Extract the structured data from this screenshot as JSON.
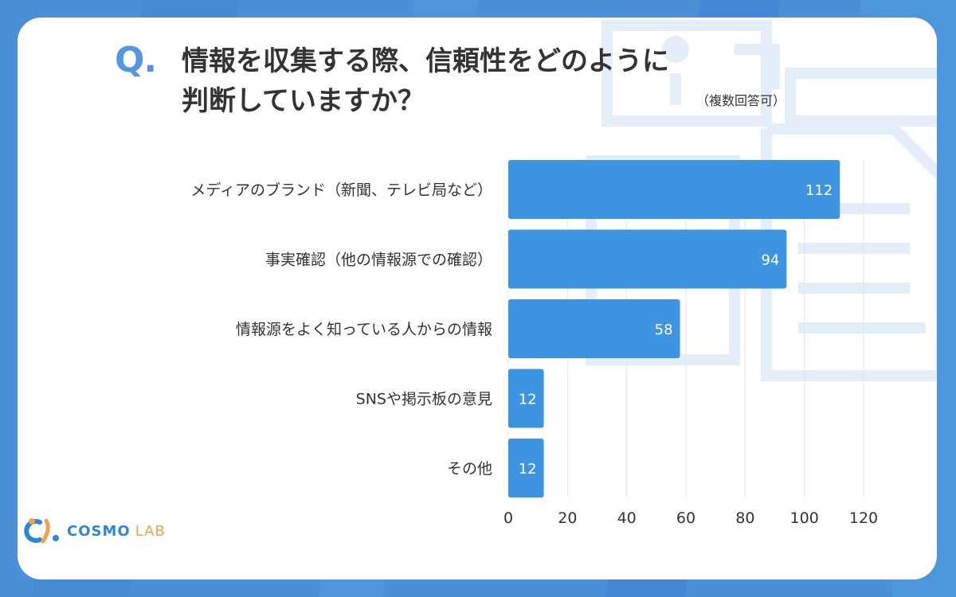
{
  "question": {
    "mark": "Q",
    "mark_dot": ".",
    "line1": "情報を収集する際、信頼性をどのように",
    "line2": "判断していますか？",
    "note": "（複数回答可）"
  },
  "logo": {
    "cosmo": "COSMO",
    "lab": "LAB"
  },
  "colors": {
    "bar": "#3d94e0",
    "accent": "#5596e0",
    "background": "#4a90d9",
    "grid": "#e2e6ec"
  },
  "chart_data": {
    "type": "bar",
    "orientation": "horizontal",
    "categories": [
      "メディアのブランド（新聞、テレビ局など）",
      "事実確認（他の情報源での確認）",
      "情報源をよく知っている人からの情報",
      "SNSや掲示板の意見",
      "その他"
    ],
    "values": [
      112,
      94,
      58,
      12,
      12
    ],
    "value_labels": [
      "112",
      "94",
      "58",
      "12",
      "12"
    ],
    "xlim": [
      0,
      120
    ],
    "xticks": [
      0,
      20,
      40,
      60,
      80,
      100,
      120
    ],
    "xtick_labels": [
      "0",
      "20",
      "40",
      "60",
      "80",
      "100",
      "120"
    ],
    "grid": true,
    "title": "",
    "xlabel": "",
    "ylabel": ""
  }
}
